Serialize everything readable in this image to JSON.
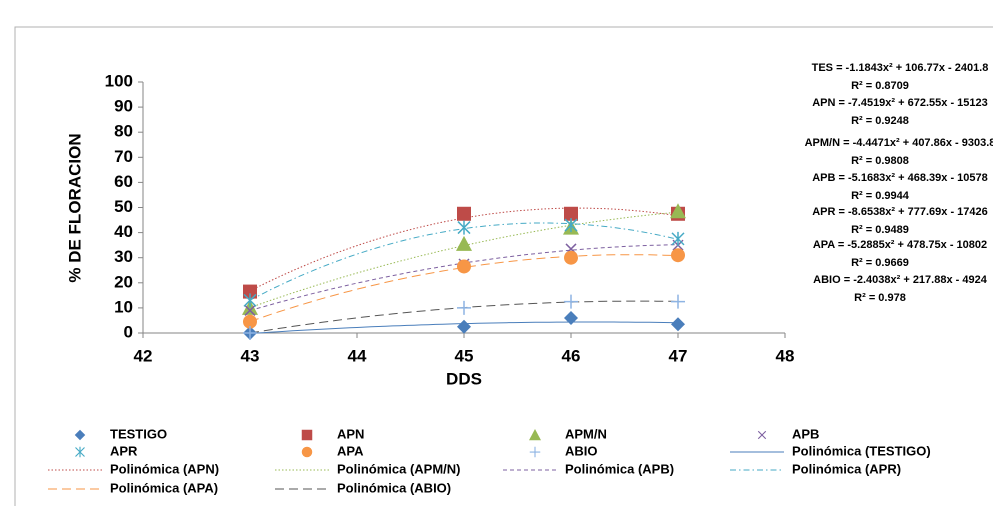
{
  "chart_data": {
    "type": "scatter",
    "xlabel": "DDS",
    "ylabel": "% DE FLORACION",
    "x": [
      43,
      45,
      46,
      47
    ],
    "xlim": [
      42,
      48
    ],
    "xticks": [
      42,
      43,
      44,
      45,
      46,
      47,
      48
    ],
    "ylim": [
      0,
      100
    ],
    "yticks": [
      0,
      10,
      20,
      30,
      40,
      50,
      60,
      70,
      80,
      90,
      100
    ],
    "grid": false,
    "series": [
      {
        "name": "TESTIGO",
        "color": "#4a7ebb",
        "marker": "diamond",
        "values": [
          0,
          2.5,
          6,
          3.5
        ],
        "trendline": {
          "name": "Polinómica (TESTIGO)",
          "style": "solid",
          "equation": "TES = -1.1843x² + 106.77x - 2401.8",
          "r2": "R² = 0.8709"
        }
      },
      {
        "name": "APN",
        "color": "#be4b48",
        "marker": "square",
        "values": [
          16.5,
          47.5,
          47.5,
          47.5
        ],
        "trendline": {
          "name": "Polinómica (APN)",
          "style": "dotted",
          "equation": "APN = -7.4519x² + 672.55x - 15123",
          "r2": "R² = 0.9248"
        }
      },
      {
        "name": "APM/N",
        "color": "#98b954",
        "marker": "triangle",
        "values": [
          10,
          35.5,
          42,
          48.5
        ],
        "trendline": {
          "name": "Polinómica (APM/N)",
          "style": "dotted",
          "equation": "APM/N = -4.4471x² + 407.86x - 9303.8",
          "r2": "R² = 0.9808"
        }
      },
      {
        "name": "APB",
        "color": "#7d60a0",
        "marker": "x",
        "values": [
          9,
          27.5,
          33.5,
          35
        ],
        "trendline": {
          "name": "Polinómica (APB)",
          "style": "dashed",
          "equation": "APB = -5.1683x² + 468.39x - 10578",
          "r2": "R² = 0.9944"
        }
      },
      {
        "name": "APR",
        "color": "#46aac5",
        "marker": "asterisk",
        "values": [
          13,
          42,
          43,
          37.5
        ],
        "trendline": {
          "name": "Polinómica (APR)",
          "style": "dashdot",
          "equation": "APR = -8.6538x² + 777.69x - 17426",
          "r2": "R² = 0.9489"
        }
      },
      {
        "name": "APA",
        "color": "#f79646",
        "marker": "circle",
        "values": [
          4.5,
          26.5,
          30,
          31
        ],
        "trendline": {
          "name": "Polinómica (APA)",
          "style": "longdash",
          "equation": "APA = -5.2885x² + 478.75x - 10802",
          "r2": "R² = 0.9669"
        }
      },
      {
        "name": "ABIO",
        "color": "#8eb4e3",
        "marker": "plus",
        "values": [
          0,
          10,
          12.5,
          12.5
        ],
        "trendline": {
          "name": "Polinómica (ABIO)",
          "style": "longdash",
          "color": "#555555",
          "equation": "ABIO = -2.4038x² + 217.88x - 4924",
          "r2": "R² = 0.978"
        }
      }
    ]
  }
}
